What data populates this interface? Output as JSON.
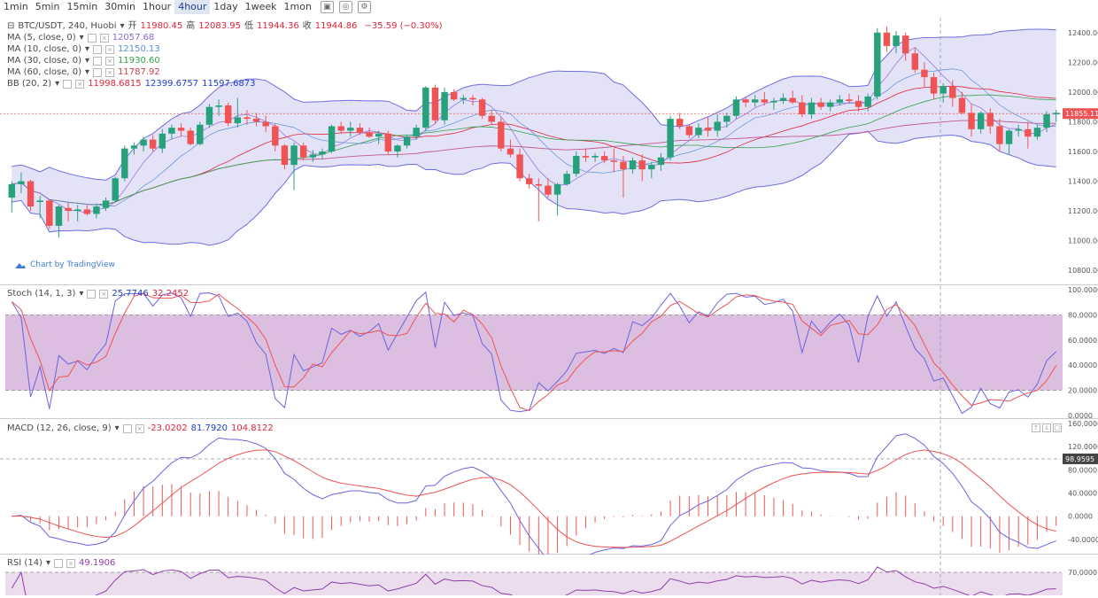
{
  "toolbar": {
    "timeframes": [
      "1min",
      "5min",
      "15min",
      "30min",
      "1hour",
      "4hour",
      "1day",
      "1week",
      "1mon"
    ],
    "active": "4hour",
    "icons": [
      "candle-style-icon",
      "indicators-icon",
      "settings-icon"
    ]
  },
  "symbol": {
    "pair": "BTC/USDT, 240, Huobi",
    "open_label": "开",
    "open": "11980.45",
    "high_label": "高",
    "high": "12083.95",
    "low_label": "低",
    "low": "11944.36",
    "close_label": "收",
    "close": "11944.86",
    "change": "−35.59 (−0.30%)"
  },
  "indicators": [
    {
      "name": "MA (5, close, 0)",
      "values": [
        "12057.68"
      ],
      "colors": [
        "#8e6ad6"
      ]
    },
    {
      "name": "MA (10, close, 0)",
      "values": [
        "12150.13"
      ],
      "colors": [
        "#5b8fd9"
      ]
    },
    {
      "name": "MA (30, close, 0)",
      "values": [
        "11930.60"
      ],
      "colors": [
        "#35a24a"
      ]
    },
    {
      "name": "MA (60, close, 0)",
      "values": [
        "11787.92"
      ],
      "colors": [
        "#d13b4b"
      ]
    },
    {
      "name": "BB (20, 2)",
      "values": [
        "11998.6815",
        "12399.6757",
        "11597.6873"
      ],
      "colors": [
        "#e0243a",
        "#1f3ec9",
        "#1f3ec9"
      ]
    }
  ],
  "watermark": "Chart by TradingView",
  "colors": {
    "up": "#26a17b",
    "down": "#ef5353",
    "bb": "#6e6ee2",
    "band": "#d7d6f4",
    "stoch_band": "#d5b3da"
  },
  "chart_data": [
    {
      "type": "candlestick",
      "title": "BTC/USDT, 240, Huobi",
      "ylim": [
        10700,
        12500
      ],
      "yticks": [
        "12400.00",
        "12200.00",
        "12000.00",
        "11800.00",
        "11600.00",
        "11400.00",
        "11200.00",
        "11000.00",
        "10800.00"
      ],
      "yticks_values": [
        12400,
        12200,
        12000,
        11800,
        11600,
        11400,
        11200,
        11000,
        10800
      ],
      "last_price_label": "11855.11",
      "last_price": 11855,
      "ohlc": [
        [
          11290,
          11400,
          11190,
          11380
        ],
        [
          11380,
          11460,
          11320,
          11400
        ],
        [
          11400,
          11410,
          11200,
          11230
        ],
        [
          11260,
          11300,
          11150,
          11270
        ],
        [
          11270,
          11280,
          11080,
          11100
        ],
        [
          11100,
          11240,
          11020,
          11230
        ],
        [
          11220,
          11260,
          11130,
          11200
        ],
        [
          11200,
          11240,
          11130,
          11210
        ],
        [
          11210,
          11240,
          11170,
          11180
        ],
        [
          11180,
          11250,
          11150,
          11230
        ],
        [
          11220,
          11290,
          11200,
          11270
        ],
        [
          11270,
          11430,
          11260,
          11420
        ],
        [
          11420,
          11640,
          11400,
          11620
        ],
        [
          11620,
          11660,
          11580,
          11640
        ],
        [
          11640,
          11700,
          11600,
          11680
        ],
        [
          11680,
          11710,
          11600,
          11620
        ],
        [
          11620,
          11750,
          11590,
          11720
        ],
        [
          11720,
          11780,
          11680,
          11760
        ],
        [
          11760,
          11790,
          11700,
          11740
        ],
        [
          11740,
          11760,
          11640,
          11650
        ],
        [
          11650,
          11800,
          11640,
          11780
        ],
        [
          11780,
          11920,
          11760,
          11900
        ],
        [
          11900,
          11950,
          11840,
          11910
        ],
        [
          11910,
          11930,
          11770,
          11790
        ],
        [
          11790,
          11960,
          11760,
          11830
        ],
        [
          11830,
          11880,
          11780,
          11820
        ],
        [
          11820,
          11860,
          11770,
          11800
        ],
        [
          11800,
          11840,
          11730,
          11770
        ],
        [
          11770,
          11790,
          11600,
          11640
        ],
        [
          11640,
          11650,
          11480,
          11510
        ],
        [
          11510,
          11660,
          11340,
          11640
        ],
        [
          11640,
          11660,
          11540,
          11560
        ],
        [
          11560,
          11610,
          11530,
          11580
        ],
        [
          11580,
          11620,
          11550,
          11600
        ],
        [
          11600,
          11780,
          11590,
          11770
        ],
        [
          11770,
          11800,
          11720,
          11740
        ],
        [
          11740,
          11800,
          11700,
          11760
        ],
        [
          11760,
          11790,
          11710,
          11730
        ],
        [
          11730,
          11760,
          11690,
          11700
        ],
        [
          11700,
          11740,
          11650,
          11720
        ],
        [
          11720,
          11740,
          11580,
          11600
        ],
        [
          11600,
          11650,
          11560,
          11640
        ],
        [
          11640,
          11710,
          11620,
          11700
        ],
        [
          11700,
          11780,
          11680,
          11760
        ],
        [
          11760,
          12040,
          11740,
          12030
        ],
        [
          12030,
          12050,
          11790,
          11810
        ],
        [
          11810,
          12030,
          11780,
          12000
        ],
        [
          12000,
          12020,
          11940,
          11950
        ],
        [
          11950,
          11980,
          11920,
          11960
        ],
        [
          11960,
          11980,
          11910,
          11950
        ],
        [
          11950,
          11960,
          11820,
          11840
        ],
        [
          11840,
          11880,
          11780,
          11800
        ],
        [
          11800,
          11830,
          11600,
          11620
        ],
        [
          11620,
          11680,
          11560,
          11580
        ],
        [
          11580,
          11620,
          11400,
          11420
        ],
        [
          11420,
          11450,
          11350,
          11380
        ],
        [
          11380,
          11420,
          11130,
          11370
        ],
        [
          11370,
          11420,
          11290,
          11310
        ],
        [
          11310,
          11390,
          11170,
          11380
        ],
        [
          11380,
          11470,
          11370,
          11450
        ],
        [
          11450,
          11600,
          11430,
          11570
        ],
        [
          11570,
          11620,
          11530,
          11560
        ],
        [
          11560,
          11590,
          11530,
          11570
        ],
        [
          11570,
          11600,
          11520,
          11540
        ],
        [
          11540,
          11620,
          11460,
          11530
        ],
        [
          11530,
          11570,
          11290,
          11480
        ],
        [
          11480,
          11560,
          11450,
          11540
        ],
        [
          11540,
          11580,
          11400,
          11480
        ],
        [
          11480,
          11530,
          11420,
          11510
        ],
        [
          11510,
          11590,
          11470,
          11560
        ],
        [
          11560,
          11840,
          11540,
          11820
        ],
        [
          11820,
          11860,
          11750,
          11770
        ],
        [
          11770,
          11780,
          11690,
          11710
        ],
        [
          11710,
          11790,
          11690,
          11760
        ],
        [
          11760,
          11830,
          11700,
          11740
        ],
        [
          11740,
          11850,
          11700,
          11800
        ],
        [
          11800,
          11860,
          11760,
          11840
        ],
        [
          11840,
          11970,
          11820,
          11950
        ],
        [
          11950,
          11970,
          11900,
          11930
        ],
        [
          11930,
          11980,
          11900,
          11950
        ],
        [
          11950,
          12000,
          11910,
          11930
        ],
        [
          11930,
          11960,
          11880,
          11940
        ],
        [
          11940,
          11990,
          11920,
          11960
        ],
        [
          11960,
          12010,
          11920,
          11930
        ],
        [
          11930,
          11980,
          11830,
          11850
        ],
        [
          11850,
          11960,
          11820,
          11930
        ],
        [
          11930,
          11960,
          11880,
          11900
        ],
        [
          11900,
          11950,
          11870,
          11930
        ],
        [
          11930,
          11980,
          11910,
          11950
        ],
        [
          11950,
          11990,
          11920,
          11940
        ],
        [
          11940,
          11980,
          11870,
          11900
        ],
        [
          11900,
          11990,
          11870,
          11970
        ],
        [
          11970,
          12430,
          11950,
          12400
        ],
        [
          12400,
          12440,
          12270,
          12310
        ],
        [
          12310,
          12410,
          12260,
          12380
        ],
        [
          12380,
          12400,
          12210,
          12260
        ],
        [
          12260,
          12300,
          12130,
          12150
        ],
        [
          12150,
          12200,
          12030,
          12100
        ],
        [
          12100,
          12130,
          11950,
          11990
        ],
        [
          11990,
          12060,
          11930,
          12040
        ],
        [
          12040,
          12080,
          11900,
          11960
        ],
        [
          11960,
          12000,
          11850,
          11860
        ],
        [
          11860,
          11920,
          11700,
          11750
        ],
        [
          11750,
          11870,
          11720,
          11860
        ],
        [
          11860,
          11890,
          11720,
          11770
        ],
        [
          11770,
          11820,
          11600,
          11650
        ],
        [
          11650,
          11750,
          11580,
          11740
        ],
        [
          11740,
          11780,
          11700,
          11750
        ],
        [
          11750,
          11800,
          11620,
          11700
        ],
        [
          11700,
          11780,
          11680,
          11760
        ],
        [
          11760,
          11870,
          11730,
          11850
        ],
        [
          11850,
          11880,
          11800,
          11860
        ]
      ]
    },
    {
      "type": "line",
      "title": "Stoch (14, 1, 3)",
      "values": [
        "25.7746",
        "32.2452"
      ],
      "ylim": [
        0,
        100
      ],
      "yticks": [
        "100.0000",
        "80.0000",
        "60.0000",
        "40.0000",
        "20.0000",
        "0.0000"
      ],
      "yticks_values": [
        100,
        80,
        60,
        40,
        20,
        0
      ],
      "band": [
        20,
        80
      ]
    },
    {
      "type": "line",
      "title": "MACD (12, 26, close, 9)",
      "values": [
        "-23.0202",
        "81.7920",
        "104.8122"
      ],
      "ylim": [
        -60,
        160
      ],
      "yticks": [
        "160.0000",
        "120.0000",
        "80.0000",
        "40.0000",
        "0.0000",
        "-40.0000"
      ],
      "yticks_values": [
        160,
        120,
        80,
        40,
        0,
        -40
      ],
      "marker_label": "98.9595",
      "marker": 99
    },
    {
      "type": "line",
      "title": "RSI (14)",
      "values": [
        "49.1906"
      ],
      "ylim": [
        30,
        80
      ],
      "yticks": [
        "70.0000"
      ],
      "yticks_values": [
        70
      ]
    }
  ]
}
